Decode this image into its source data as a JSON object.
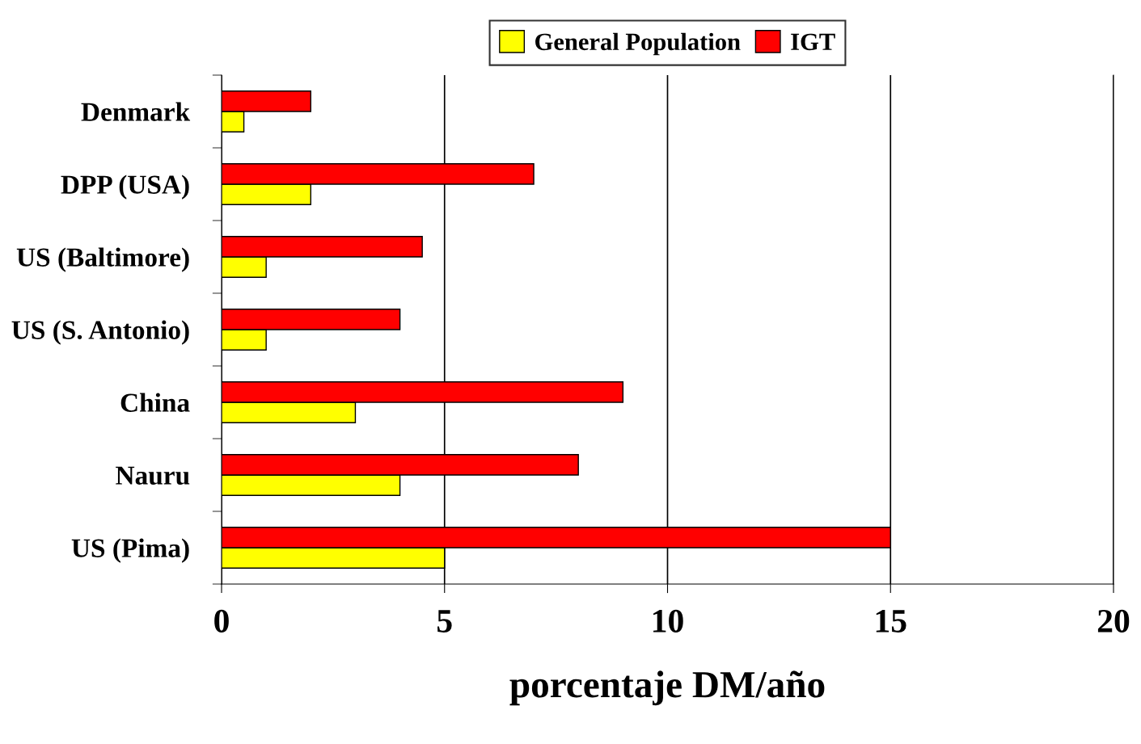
{
  "chart_data": {
    "type": "bar",
    "orientation": "horizontal",
    "categories": [
      "Denmark",
      "DPP (USA)",
      "US (Baltimore)",
      "US (S. Antonio)",
      "China",
      "Nauru",
      "US (Pima)"
    ],
    "series": [
      {
        "name": "General Population",
        "color": "#ffff00",
        "values": [
          0.5,
          2,
          1,
          1,
          3,
          4,
          5
        ]
      },
      {
        "name": "IGT",
        "color": "#ff0000",
        "values": [
          2,
          7,
          4.5,
          4,
          9,
          8,
          15
        ]
      }
    ],
    "xlabel": "porcentaje DM/año",
    "xlim": [
      0,
      20
    ],
    "xticks": [
      0,
      5,
      10,
      15,
      20
    ],
    "grid": "x",
    "legend": "top"
  }
}
